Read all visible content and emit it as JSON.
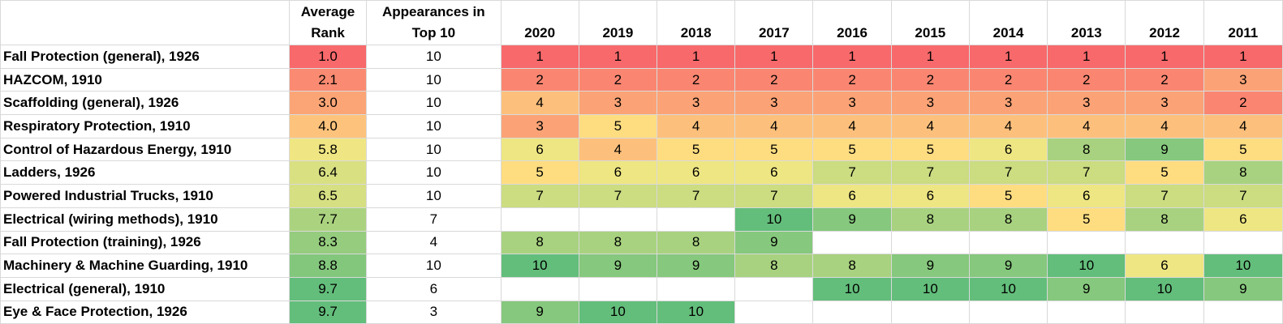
{
  "table": {
    "header": [
      "Average\nRank",
      "Appearances in\nTop 10",
      "2020",
      "2019",
      "2018",
      "2017",
      "2016",
      "2015",
      "2014",
      "2013",
      "2012",
      "2011"
    ],
    "rows": [
      [
        "Fall Protection (general), 1926",
        "1.0",
        10,
        1,
        1,
        1,
        1,
        1,
        1,
        1,
        1,
        1,
        1
      ],
      [
        "HAZCOM, 1910",
        "2.1",
        10,
        2,
        2,
        2,
        2,
        2,
        2,
        2,
        2,
        2,
        3
      ],
      [
        "Scaffolding (general), 1926",
        "3.0",
        10,
        4,
        3,
        3,
        3,
        3,
        3,
        3,
        3,
        3,
        2
      ],
      [
        "Respiratory Protection, 1910",
        "4.0",
        10,
        3,
        5,
        4,
        4,
        4,
        4,
        4,
        4,
        4,
        4
      ],
      [
        "Control of Hazardous Energy, 1910",
        "5.8",
        10,
        6,
        4,
        5,
        5,
        5,
        5,
        6,
        8,
        9,
        5
      ],
      [
        "Ladders, 1926",
        "6.4",
        10,
        5,
        6,
        6,
        6,
        7,
        7,
        7,
        7,
        5,
        8
      ],
      [
        "Powered Industrial Trucks, 1910",
        "6.5",
        10,
        7,
        7,
        7,
        7,
        6,
        6,
        5,
        6,
        7,
        7
      ],
      [
        "Electrical (wiring methods), 1910",
        "7.7",
        7,
        null,
        null,
        null,
        10,
        9,
        8,
        8,
        5,
        8,
        6
      ],
      [
        "Fall Protection (training), 1926",
        "8.3",
        4,
        8,
        8,
        8,
        9,
        null,
        null,
        null,
        null,
        null,
        null
      ],
      [
        "Machinery & Machine Guarding, 1910",
        "8.8",
        10,
        10,
        9,
        9,
        8,
        8,
        9,
        9,
        10,
        6,
        10
      ],
      [
        "Electrical (general), 1910",
        "9.7",
        6,
        null,
        null,
        null,
        null,
        10,
        10,
        10,
        9,
        10,
        9
      ],
      [
        "Eye & Face Protection, 1926",
        "9.7",
        3,
        9,
        10,
        10,
        null,
        null,
        null,
        null,
        null,
        null,
        null
      ]
    ]
  }
}
